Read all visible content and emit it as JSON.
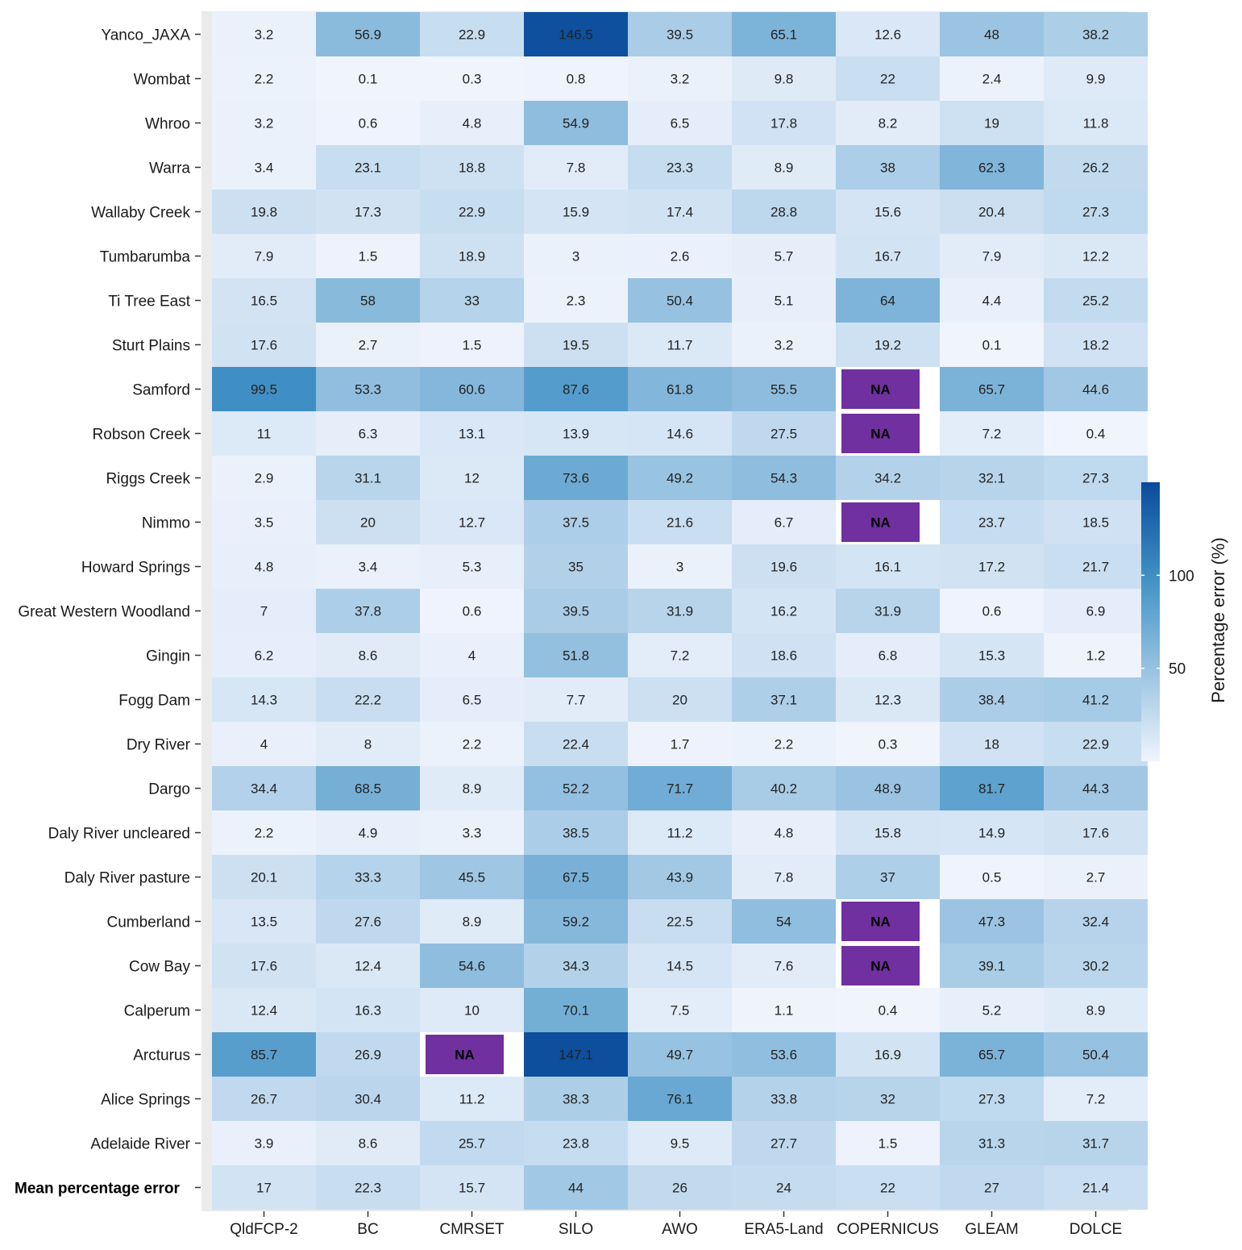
{
  "chart_data": {
    "type": "heatmap",
    "title": "",
    "xlabel": "",
    "ylabel": "",
    "columns": [
      "QldFCP-2",
      "BC",
      "CMRSET",
      "SILO",
      "AWO",
      "ERA5-Land",
      "COPERNICUS",
      "GLEAM",
      "DOLCE"
    ],
    "rows": [
      {
        "label": "Yanco_JAXA",
        "values": [
          "3.2",
          "56.9",
          "22.9",
          "146.5",
          "39.5",
          "65.1",
          "12.6",
          "48",
          "38.2"
        ]
      },
      {
        "label": "Wombat",
        "values": [
          "2.2",
          "0.1",
          "0.3",
          "0.8",
          "3.2",
          "9.8",
          "22",
          "2.4",
          "9.9"
        ]
      },
      {
        "label": "Whroo",
        "values": [
          "3.2",
          "0.6",
          "4.8",
          "54.9",
          "6.5",
          "17.8",
          "8.2",
          "19",
          "11.8"
        ]
      },
      {
        "label": "Warra",
        "values": [
          "3.4",
          "23.1",
          "18.8",
          "7.8",
          "23.3",
          "8.9",
          "38",
          "62.3",
          "26.2"
        ]
      },
      {
        "label": "Wallaby Creek",
        "values": [
          "19.8",
          "17.3",
          "22.9",
          "15.9",
          "17.4",
          "28.8",
          "15.6",
          "20.4",
          "27.3"
        ]
      },
      {
        "label": "Tumbarumba",
        "values": [
          "7.9",
          "1.5",
          "18.9",
          "3",
          "2.6",
          "5.7",
          "16.7",
          "7.9",
          "12.2"
        ]
      },
      {
        "label": "Ti Tree East",
        "values": [
          "16.5",
          "58",
          "33",
          "2.3",
          "50.4",
          "5.1",
          "64",
          "4.4",
          "25.2"
        ]
      },
      {
        "label": "Sturt Plains",
        "values": [
          "17.6",
          "2.7",
          "1.5",
          "19.5",
          "11.7",
          "3.2",
          "19.2",
          "0.1",
          "18.2"
        ]
      },
      {
        "label": "Samford",
        "values": [
          "99.5",
          "53.3",
          "60.6",
          "87.6",
          "61.8",
          "55.5",
          "NA",
          "65.7",
          "44.6"
        ]
      },
      {
        "label": "Robson Creek",
        "values": [
          "11",
          "6.3",
          "13.1",
          "13.9",
          "14.6",
          "27.5",
          "NA",
          "7.2",
          "0.4"
        ]
      },
      {
        "label": "Riggs Creek",
        "values": [
          "2.9",
          "31.1",
          "12",
          "73.6",
          "49.2",
          "54.3",
          "34.2",
          "32.1",
          "27.3"
        ]
      },
      {
        "label": "Nimmo",
        "values": [
          "3.5",
          "20",
          "12.7",
          "37.5",
          "21.6",
          "6.7",
          "NA",
          "23.7",
          "18.5"
        ]
      },
      {
        "label": "Howard Springs",
        "values": [
          "4.8",
          "3.4",
          "5.3",
          "35",
          "3",
          "19.6",
          "16.1",
          "17.2",
          "21.7"
        ]
      },
      {
        "label": "Great Western Woodland",
        "values": [
          "7",
          "37.8",
          "0.6",
          "39.5",
          "31.9",
          "16.2",
          "31.9",
          "0.6",
          "6.9"
        ]
      },
      {
        "label": "Gingin",
        "values": [
          "6.2",
          "8.6",
          "4",
          "51.8",
          "7.2",
          "18.6",
          "6.8",
          "15.3",
          "1.2"
        ]
      },
      {
        "label": "Fogg Dam",
        "values": [
          "14.3",
          "22.2",
          "6.5",
          "7.7",
          "20",
          "37.1",
          "12.3",
          "38.4",
          "41.2"
        ]
      },
      {
        "label": "Dry River",
        "values": [
          "4",
          "8",
          "2.2",
          "22.4",
          "1.7",
          "2.2",
          "0.3",
          "18",
          "22.9"
        ]
      },
      {
        "label": "Dargo",
        "values": [
          "34.4",
          "68.5",
          "8.9",
          "52.2",
          "71.7",
          "40.2",
          "48.9",
          "81.7",
          "44.3"
        ]
      },
      {
        "label": "Daly River uncleared",
        "values": [
          "2.2",
          "4.9",
          "3.3",
          "38.5",
          "11.2",
          "4.8",
          "15.8",
          "14.9",
          "17.6"
        ]
      },
      {
        "label": "Daly River pasture",
        "values": [
          "20.1",
          "33.3",
          "45.5",
          "67.5",
          "43.9",
          "7.8",
          "37",
          "0.5",
          "2.7"
        ]
      },
      {
        "label": "Cumberland",
        "values": [
          "13.5",
          "27.6",
          "8.9",
          "59.2",
          "22.5",
          "54",
          "NA",
          "47.3",
          "32.4"
        ]
      },
      {
        "label": "Cow Bay",
        "values": [
          "17.6",
          "12.4",
          "54.6",
          "34.3",
          "14.5",
          "7.6",
          "NA",
          "39.1",
          "30.2"
        ]
      },
      {
        "label": "Calperum",
        "values": [
          "12.4",
          "16.3",
          "10",
          "70.1",
          "7.5",
          "1.1",
          "0.4",
          "5.2",
          "8.9"
        ]
      },
      {
        "label": "Arcturus",
        "values": [
          "85.7",
          "26.9",
          "NA",
          "147.1",
          "49.7",
          "53.6",
          "16.9",
          "65.7",
          "50.4"
        ]
      },
      {
        "label": "Alice Springs",
        "values": [
          "26.7",
          "30.4",
          "11.2",
          "38.3",
          "76.1",
          "33.8",
          "32",
          "27.3",
          "7.2"
        ]
      },
      {
        "label": "Adelaide River",
        "values": [
          "3.9",
          "8.6",
          "25.7",
          "23.8",
          "9.5",
          "27.7",
          "1.5",
          "31.3",
          "31.7"
        ]
      },
      {
        "label": "Mean percentage error",
        "bold": true,
        "values": [
          "17",
          "22.3",
          "15.7",
          "44",
          "26",
          "24",
          "22",
          "27",
          "21.4"
        ]
      }
    ],
    "legend": {
      "title": "Percentage error (%)",
      "ticks": [
        50,
        100
      ],
      "range": [
        0,
        150
      ],
      "color_low": "#f0f4fd",
      "color_high": "#0a4a9b",
      "placement": "right"
    },
    "na_color": "#7030a0"
  }
}
